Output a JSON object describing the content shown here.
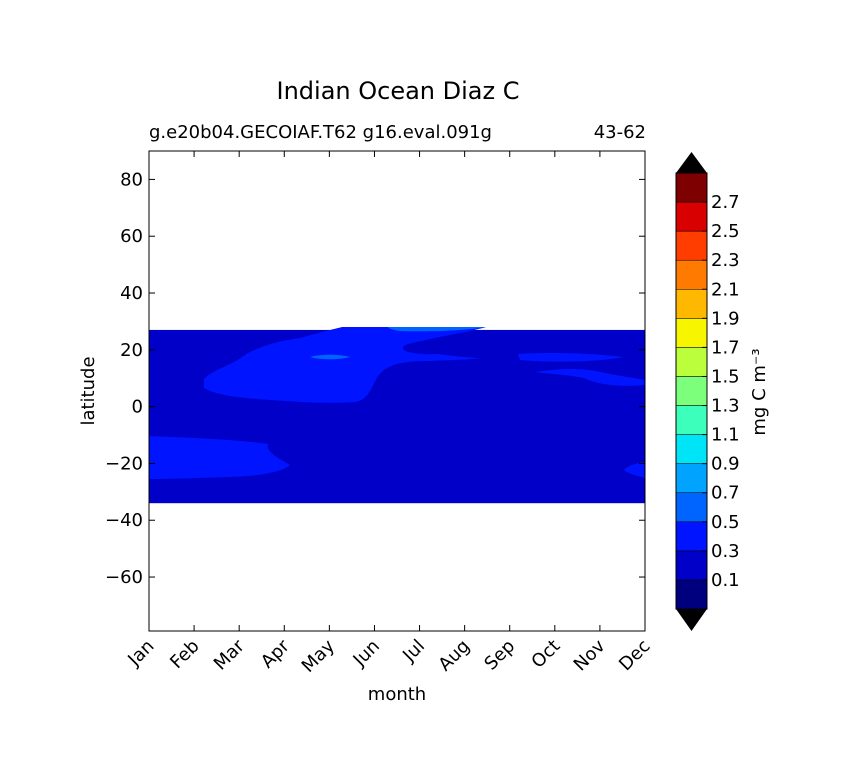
{
  "chart_data": {
    "type": "contour",
    "title": "Indian Ocean Diaz C",
    "subtitle_left": "g.e20b04.GECOIAF.T62 g16.eval.091g",
    "subtitle_right": "43-62",
    "xlabel": "month",
    "ylabel": "latitude",
    "x_categories": [
      "Jan",
      "Feb",
      "Mar",
      "Apr",
      "May",
      "Jun",
      "Jul",
      "Aug",
      "Sep",
      "Oct",
      "Nov",
      "Dec"
    ],
    "y_ticks": [
      80,
      60,
      40,
      20,
      0,
      -20,
      -40,
      -60
    ],
    "ylim": [
      -79,
      90
    ],
    "data_lat_range": [
      -34,
      27
    ],
    "colorbar": {
      "label": "mg C m⁻³",
      "tick_labels": [
        "0.1",
        "0.3",
        "0.5",
        "0.7",
        "0.9",
        "1.1",
        "1.3",
        "1.5",
        "1.7",
        "1.9",
        "2.1",
        "2.3",
        "2.5",
        "2.7"
      ],
      "levels": [
        0.0,
        0.2,
        0.4,
        0.6,
        0.8,
        1.0,
        1.2,
        1.4,
        1.6,
        1.8,
        2.0,
        2.2,
        2.4,
        2.6,
        2.8
      ],
      "colors": [
        "#00007f",
        "#0000c8",
        "#0014ff",
        "#0064ff",
        "#00a4ff",
        "#00e4f8",
        "#3cffbb",
        "#7cff7b",
        "#bbff3c",
        "#f8f500",
        "#ffb800",
        "#ff7a00",
        "#ff3d00",
        "#d80000",
        "#7f0000"
      ],
      "extend": "both",
      "under_color": "#000000",
      "over_color": "#000000"
    },
    "regions": [
      {
        "level_range": [
          0.2,
          0.4
        ],
        "description": "background field",
        "lat_range": [
          -34,
          27
        ],
        "months": "Jan-Dec"
      },
      {
        "level_range": [
          0.4,
          0.6
        ],
        "lat_range": [
          1,
          27
        ],
        "months": "Feb-Oct"
      },
      {
        "level_range": [
          0.4,
          0.6
        ],
        "lat_range": [
          -26,
          -11
        ],
        "months": "Jan-Mar"
      },
      {
        "level_range": [
          0.4,
          0.6
        ],
        "lat_range": [
          7,
          18
        ],
        "months": "Sep-Dec"
      },
      {
        "level_range": [
          0.6,
          0.8
        ],
        "lat_range": [
          24,
          27
        ],
        "months": "Jun-Aug"
      },
      {
        "level_range": [
          0.6,
          0.8
        ],
        "lat_range": [
          16,
          18
        ],
        "months": "May"
      }
    ]
  },
  "colors": {
    "background": "#ffffff",
    "axis": "#000000",
    "missing": "#ffffff"
  }
}
